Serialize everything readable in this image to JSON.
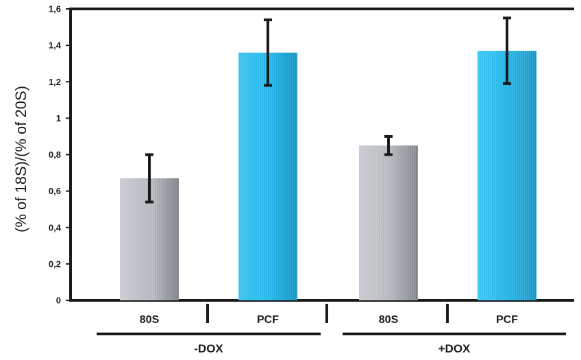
{
  "chart_data": {
    "type": "bar",
    "ylabel": "(% of 18S)/(% of 20S)",
    "ylim": [
      0,
      1.6
    ],
    "yticks": [
      "0",
      "0,2",
      "0,4",
      "0,6",
      "0,8",
      "1",
      "1,2",
      "1,4",
      "1,6"
    ],
    "categories": [
      "80S",
      "PCF",
      "80S",
      "PCF"
    ],
    "groups": [
      {
        "label": "-DOX",
        "categories": [
          "80S",
          "PCF"
        ]
      },
      {
        "label": "+DOX",
        "categories": [
          "80S",
          "PCF"
        ]
      }
    ],
    "values": [
      0.67,
      1.36,
      0.85,
      1.37
    ],
    "error_low": [
      0.54,
      1.18,
      0.8,
      1.19
    ],
    "error_high": [
      0.8,
      1.54,
      0.9,
      1.55
    ],
    "bar_colors": [
      "#b8bcc2",
      "#2bb8e8",
      "#b8bcc2",
      "#2bb8e8"
    ],
    "grid": false,
    "legend": "none"
  }
}
